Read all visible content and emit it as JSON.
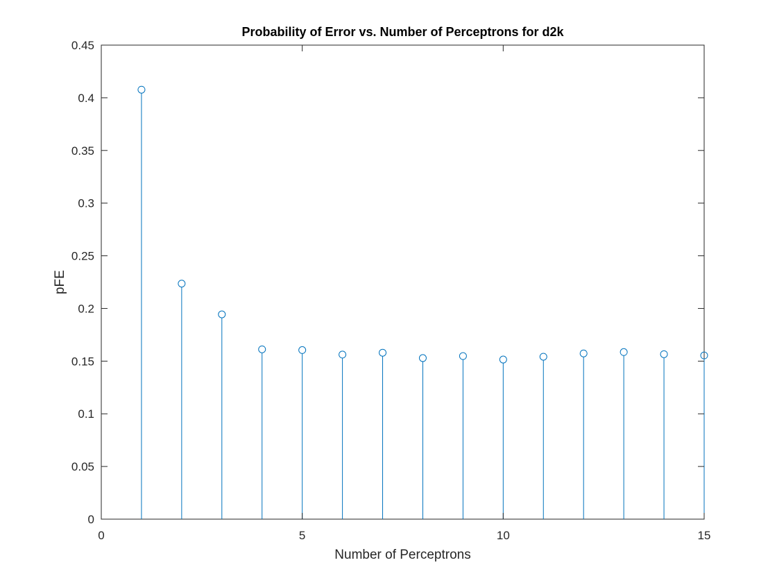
{
  "chart_data": {
    "type": "stem",
    "title": "Probability of Error vs. Number of Perceptrons for d2k",
    "xlabel": "Number of Perceptrons",
    "ylabel": "pFE",
    "xlim": [
      0,
      15
    ],
    "ylim": [
      0,
      0.45
    ],
    "xticks": [
      0,
      5,
      10,
      15
    ],
    "xtick_labels": [
      "0",
      "5",
      "10",
      "15"
    ],
    "yticks": [
      0,
      0.05,
      0.1,
      0.15,
      0.2,
      0.25,
      0.3,
      0.35,
      0.4,
      0.45
    ],
    "ytick_labels": [
      "0",
      "0.05",
      "0.1",
      "0.15",
      "0.2",
      "0.25",
      "0.3",
      "0.35",
      "0.4",
      "0.45"
    ],
    "grid": false,
    "box": true,
    "x": [
      1,
      2,
      3,
      4,
      5,
      6,
      7,
      8,
      9,
      10,
      11,
      12,
      13,
      14,
      15
    ],
    "y": [
      0.4077,
      0.2236,
      0.1944,
      0.1612,
      0.1605,
      0.1562,
      0.158,
      0.1529,
      0.1548,
      0.1515,
      0.1542,
      0.1573,
      0.1586,
      0.1566,
      0.1554
    ],
    "marker": "circle",
    "color": "#0072BD"
  }
}
